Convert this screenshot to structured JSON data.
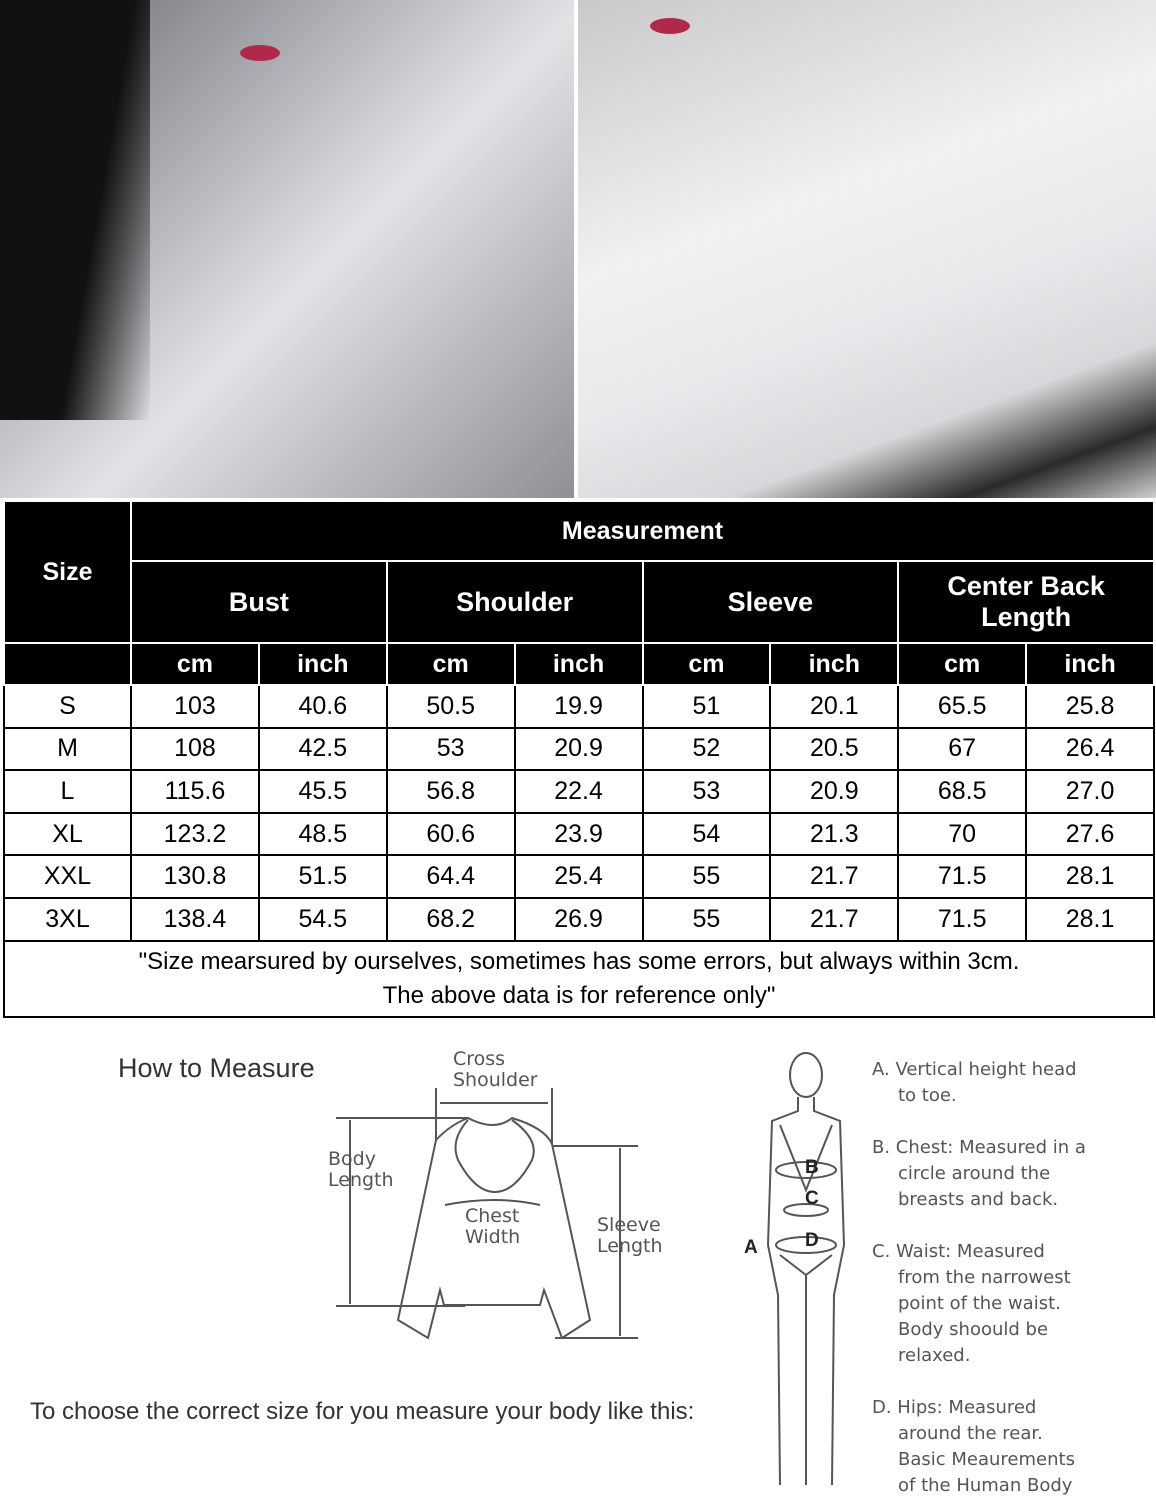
{
  "photos": {
    "left": "model photo lying in white satin blouse",
    "right": "model photo standing in white satin blouse"
  },
  "table": {
    "size_header": "Size",
    "measurement_header": "Measurement",
    "groups": [
      "Bust",
      "Shoulder",
      "Sleeve",
      "Center Back Length"
    ],
    "units": [
      "cm",
      "inch",
      "cm",
      "inch",
      "cm",
      "inch",
      "cm",
      "inch"
    ],
    "rows": [
      [
        "S",
        "103",
        "40.6",
        "50.5",
        "19.9",
        "51",
        "20.1",
        "65.5",
        "25.8"
      ],
      [
        "M",
        "108",
        "42.5",
        "53",
        "20.9",
        "52",
        "20.5",
        "67",
        "26.4"
      ],
      [
        "L",
        "115.6",
        "45.5",
        "56.8",
        "22.4",
        "53",
        "20.9",
        "68.5",
        "27.0"
      ],
      [
        "XL",
        "123.2",
        "48.5",
        "60.6",
        "23.9",
        "54",
        "21.3",
        "70",
        "27.6"
      ],
      [
        "XXL",
        "130.8",
        "51.5",
        "64.4",
        "25.4",
        "55",
        "21.7",
        "71.5",
        "28.1"
      ],
      [
        "3XL",
        "138.4",
        "54.5",
        "68.2",
        "26.9",
        "55",
        "21.7",
        "71.5",
        "28.1"
      ]
    ],
    "note_line1": "\"Size mearsured by ourselves, sometimes has some errors, but always within 3cm.",
    "note_line2": "The above data is for reference only\""
  },
  "guide": {
    "title": "How to Measure",
    "choose": "To choose the correct size for you measure your body like this:",
    "shirt_labels": {
      "cross": "Cross",
      "shoulder": "Shoulder",
      "body": "Body",
      "body_length": "Length",
      "chest": "Chest",
      "width": "Width",
      "sleeve": "Sleeve",
      "sleeve_length": "Length"
    },
    "body_marks": [
      "A",
      "B",
      "C",
      "D"
    ],
    "notes": [
      [
        "A. Vertical height head",
        "to toe."
      ],
      [
        "B. Chest: Measured in a",
        "circle around the",
        "breasts and back."
      ],
      [
        "C. Waist: Measured",
        "from the narrowest",
        "point of the waist.",
        "Body shoould be",
        "relaxed."
      ],
      [
        "D. Hips: Measured",
        "around the rear.",
        "Basic Meaurements",
        "of the Human Body"
      ]
    ]
  }
}
